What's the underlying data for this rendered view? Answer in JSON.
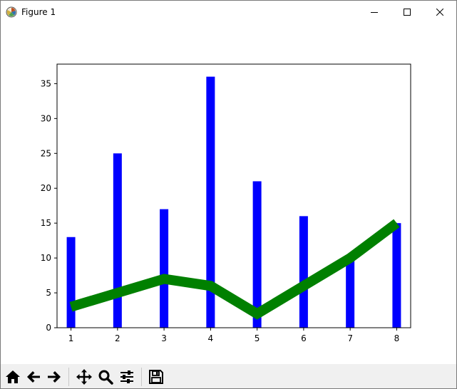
{
  "window": {
    "title": "Figure 1",
    "app_icon": "matplotlib-figure-icon",
    "controls": [
      "minimize-icon",
      "maximize-icon",
      "close-icon"
    ]
  },
  "toolbar": {
    "buttons": [
      {
        "name": "home-button",
        "icon": "home-icon"
      },
      {
        "name": "back-button",
        "icon": "arrow-left-icon"
      },
      {
        "name": "forward-button",
        "icon": "arrow-right-icon"
      },
      {
        "name": "pan-button",
        "icon": "move-arrows-icon"
      },
      {
        "name": "zoom-button",
        "icon": "magnifier-icon"
      },
      {
        "name": "subplots-button",
        "icon": "sliders-icon"
      },
      {
        "name": "save-button",
        "icon": "floppy-disk-icon"
      }
    ]
  },
  "chart_data": {
    "type": "bar",
    "categories": [
      "1",
      "2",
      "3",
      "4",
      "5",
      "6",
      "7",
      "8"
    ],
    "x": [
      1,
      2,
      3,
      4,
      5,
      6,
      7,
      8
    ],
    "series": [
      {
        "type": "bar",
        "values": [
          13,
          25,
          17,
          36,
          21,
          16,
          10,
          15
        ],
        "color": "#0000ff"
      },
      {
        "type": "line",
        "values": [
          3,
          5,
          7,
          6,
          2,
          6,
          10,
          15
        ],
        "color": "#008000"
      }
    ],
    "title": "",
    "xlabel": "",
    "ylabel": "",
    "xlim": [
      0.7,
      8.3
    ],
    "ylim": [
      0,
      37.8
    ],
    "xticks": [
      1,
      2,
      3,
      4,
      5,
      6,
      7,
      8
    ],
    "yticks": [
      0,
      5,
      10,
      15,
      20,
      25,
      30,
      35
    ],
    "grid": false,
    "legend": "none"
  }
}
